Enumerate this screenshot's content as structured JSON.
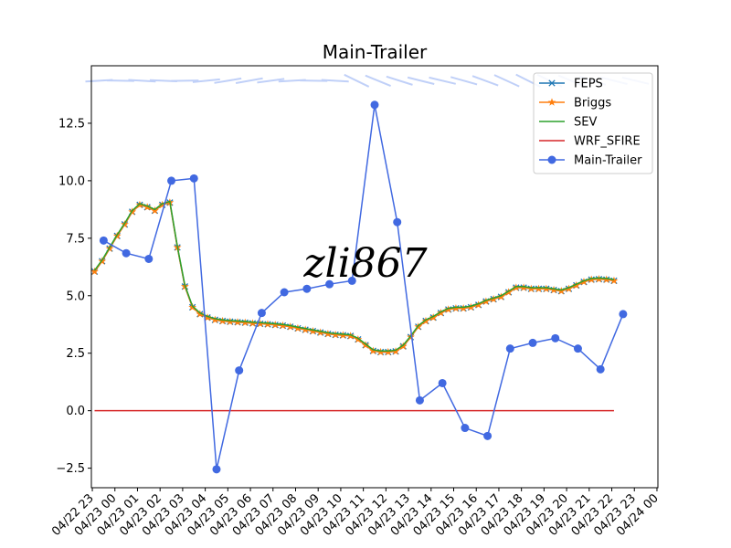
{
  "chart_data": {
    "type": "line",
    "title": "Main-Trailer",
    "xlabel": "",
    "ylabel": "",
    "xlim": [
      -0.0417,
      25.0417
    ],
    "ylim": [
      -3.35,
      15.0
    ],
    "x_tick_labels": [
      "04/22 23",
      "04/23 00",
      "04/23 01",
      "04/23 02",
      "04/23 03",
      "04/23 04",
      "04/23 05",
      "04/23 06",
      "04/23 07",
      "04/23 08",
      "04/23 09",
      "04/23 10",
      "04/23 11",
      "04/23 12",
      "04/23 13",
      "04/23 14",
      "04/23 15",
      "04/23 16",
      "04/23 17",
      "04/23 18",
      "04/23 19",
      "04/23 20",
      "04/23 21",
      "04/23 22",
      "04/23 23",
      "04/24 00"
    ],
    "y_ticks": [
      -2.5,
      0.0,
      2.5,
      5.0,
      7.5,
      10.0,
      12.5
    ],
    "y_tick_labels": [
      "−2.5",
      "0.0",
      "2.5",
      "5.0",
      "7.5",
      "10.0",
      "12.5"
    ],
    "grid": false,
    "legend_position": "top-right",
    "series": [
      {
        "name": "FEPS",
        "color": "#1f77b4",
        "marker": "x",
        "values": [
          6.05,
          6.5,
          7.05,
          7.6,
          8.1,
          8.65,
          8.95,
          8.85,
          8.7,
          8.95,
          9.05,
          7.1,
          5.4,
          4.5,
          4.2,
          4.05,
          3.95,
          3.9,
          3.87,
          3.85,
          3.83,
          3.8,
          3.78,
          3.76,
          3.73,
          3.7,
          3.65,
          3.58,
          3.52,
          3.46,
          3.4,
          3.34,
          3.3,
          3.28,
          3.25,
          3.1,
          2.85,
          2.6,
          2.55,
          2.55,
          2.58,
          2.8,
          3.2,
          3.65,
          3.9,
          4.05,
          4.25,
          4.4,
          4.45,
          4.45,
          4.5,
          4.6,
          4.75,
          4.85,
          4.95,
          5.15,
          5.35,
          5.35,
          5.3,
          5.3,
          5.3,
          5.25,
          5.2,
          5.3,
          5.45,
          5.6,
          5.7,
          5.72,
          5.7,
          5.65
        ]
      },
      {
        "name": "Briggs",
        "color": "#ff7f0e",
        "marker": "star",
        "values": [
          6.05,
          6.5,
          7.05,
          7.6,
          8.1,
          8.65,
          8.95,
          8.85,
          8.7,
          8.95,
          9.05,
          7.1,
          5.4,
          4.5,
          4.2,
          4.05,
          3.95,
          3.9,
          3.87,
          3.85,
          3.83,
          3.8,
          3.78,
          3.76,
          3.73,
          3.7,
          3.65,
          3.58,
          3.52,
          3.46,
          3.4,
          3.34,
          3.3,
          3.28,
          3.25,
          3.1,
          2.85,
          2.6,
          2.55,
          2.55,
          2.58,
          2.8,
          3.2,
          3.65,
          3.9,
          4.05,
          4.25,
          4.4,
          4.45,
          4.45,
          4.5,
          4.6,
          4.75,
          4.85,
          4.95,
          5.15,
          5.35,
          5.35,
          5.3,
          5.3,
          5.3,
          5.25,
          5.2,
          5.3,
          5.45,
          5.6,
          5.7,
          5.72,
          5.7,
          5.65
        ]
      },
      {
        "name": "SEV",
        "color": "#2ca02c",
        "marker": "none",
        "values": [
          6.1,
          6.55,
          7.1,
          7.65,
          8.15,
          8.7,
          9.0,
          8.9,
          8.75,
          9.0,
          9.1,
          7.15,
          5.45,
          4.55,
          4.25,
          4.1,
          4.0,
          3.95,
          3.92,
          3.9,
          3.88,
          3.85,
          3.83,
          3.81,
          3.78,
          3.75,
          3.7,
          3.63,
          3.57,
          3.51,
          3.45,
          3.39,
          3.35,
          3.33,
          3.3,
          3.15,
          2.9,
          2.65,
          2.6,
          2.6,
          2.63,
          2.85,
          3.25,
          3.7,
          3.95,
          4.1,
          4.3,
          4.45,
          4.5,
          4.5,
          4.55,
          4.65,
          4.8,
          4.9,
          5.0,
          5.2,
          5.4,
          5.4,
          5.35,
          5.35,
          5.35,
          5.3,
          5.25,
          5.35,
          5.5,
          5.65,
          5.75,
          5.77,
          5.75,
          5.7
        ]
      },
      {
        "name": "WRF_SFIRE",
        "color": "#d62728",
        "marker": "none",
        "values": [
          0,
          0,
          0,
          0,
          0,
          0,
          0,
          0,
          0,
          0,
          0,
          0,
          0,
          0,
          0,
          0,
          0,
          0,
          0,
          0,
          0,
          0,
          0,
          0,
          0,
          0,
          0,
          0,
          0,
          0,
          0,
          0,
          0,
          0,
          0,
          0,
          0,
          0,
          0,
          0,
          0,
          0,
          0,
          0,
          0,
          0,
          0,
          0,
          0,
          0,
          0,
          0,
          0,
          0,
          0,
          0,
          0,
          0,
          0,
          0,
          0,
          0,
          0,
          0,
          0,
          0,
          0,
          0,
          0,
          0
        ]
      },
      {
        "name": "Main-Trailer",
        "color": "#4169e1",
        "marker": "circle",
        "x_hours": [
          0.5,
          1.5,
          2.5,
          3.5,
          4.5,
          5.5,
          6.5,
          7.5,
          8.5,
          9.5,
          10.5,
          11.5,
          12.5,
          13.5,
          14.5,
          15.5,
          16.5,
          17.5,
          18.5,
          19.5,
          20.5,
          21.5,
          22.5,
          23.5
        ],
        "values": [
          7.4,
          6.85,
          6.6,
          10.0,
          10.1,
          -2.55,
          1.75,
          4.25,
          5.15,
          5.3,
          5.5,
          5.65,
          13.3,
          8.2,
          0.45,
          1.2,
          -0.75,
          -1.1,
          2.7,
          2.95,
          3.15,
          2.7,
          1.8,
          4.2
        ]
      }
    ],
    "model_x_start_hours": 0.1,
    "model_x_step_hours": 0.3333,
    "wind_barbs_color": "#c0d0f8",
    "watermark": "zli867"
  }
}
